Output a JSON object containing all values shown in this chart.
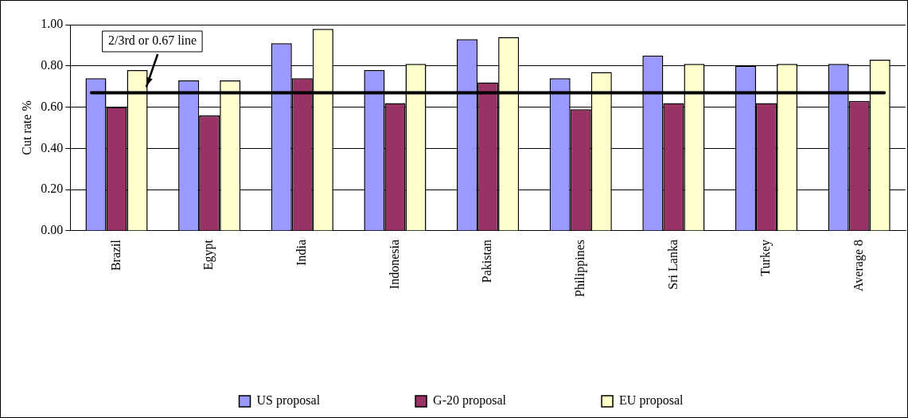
{
  "chart_data": {
    "type": "bar",
    "ylabel": "Cut rate %",
    "categories": [
      "Brazil",
      "Egypt",
      "India",
      "Indonesia",
      "Pakistan",
      "Philippines",
      "Sri Lanka",
      "Turkey",
      "Average 8"
    ],
    "series": [
      {
        "name": "US proposal",
        "color": "#9999ff",
        "values": [
          0.74,
          0.73,
          0.91,
          0.78,
          0.93,
          0.74,
          0.85,
          0.8,
          0.81
        ]
      },
      {
        "name": "G-20 proposal",
        "color": "#993366",
        "values": [
          0.6,
          0.56,
          0.74,
          0.62,
          0.72,
          0.59,
          0.62,
          0.62,
          0.63
        ]
      },
      {
        "name": "EU proposal",
        "color": "#ffffcc",
        "values": [
          0.78,
          0.73,
          0.98,
          0.81,
          0.94,
          0.77,
          0.81,
          0.81,
          0.83
        ]
      }
    ],
    "ylim": [
      0,
      1
    ],
    "yticks": [
      {
        "value": 0,
        "label": "0.00"
      },
      {
        "value": 0.2,
        "label": "0.20"
      },
      {
        "value": 0.4,
        "label": "0.40"
      },
      {
        "value": 0.6,
        "label": "0.60"
      },
      {
        "value": 0.8,
        "label": "0.80"
      },
      {
        "value": 1,
        "label": "1.00"
      }
    ],
    "ref_lines": [
      {
        "axis": "y",
        "value": 0.67,
        "label": "2/3rd or 0.67 line",
        "color": "#000000"
      }
    ],
    "grid": "y",
    "legend": "bottom"
  }
}
